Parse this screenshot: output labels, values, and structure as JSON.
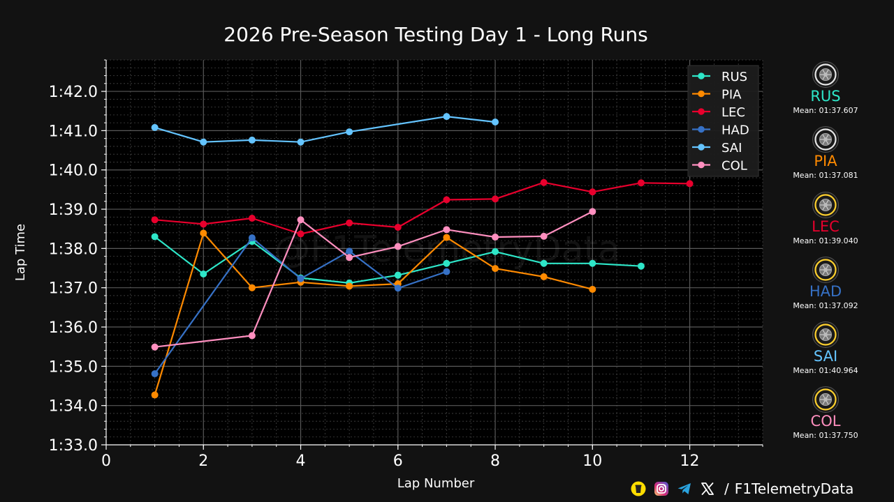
{
  "page": {
    "title": "2026 Pre-Season Testing Day 1 - Long Runs",
    "watermark": "@F1TelemetryData"
  },
  "colors": {
    "background": "#121212",
    "plot_background": "#000000",
    "RUS": "#2ee6c8",
    "PIA": "#ff8a00",
    "LEC": "#e8002d",
    "HAD": "#3671c6",
    "SAI": "#64c4ff",
    "COL": "#ff8fbf"
  },
  "chart_data": {
    "type": "line",
    "title": "2026 Pre-Season Testing Day 1 - Long Runs",
    "xlabel": "Lap Number",
    "ylabel": "Lap Time",
    "xlim": [
      0,
      13.5
    ],
    "ylim": [
      93,
      102.8
    ],
    "x_ticks": [
      0,
      2,
      4,
      6,
      8,
      10,
      12
    ],
    "x_tick_labels": [
      "0",
      "2",
      "4",
      "6",
      "8",
      "10",
      "12"
    ],
    "y_ticks": [
      93,
      94,
      95,
      96,
      97,
      98,
      99,
      100,
      101,
      102
    ],
    "y_tick_labels": [
      "1:33.0",
      "1:34.0",
      "1:35.0",
      "1:36.0",
      "1:37.0",
      "1:38.0",
      "1:39.0",
      "1:40.0",
      "1:41.0",
      "1:42.0"
    ],
    "grid": true,
    "legend_position": "top-right",
    "series": [
      {
        "name": "RUS",
        "x": [
          1,
          2,
          3,
          4,
          5,
          6,
          7,
          8,
          9,
          10,
          11
        ],
        "y": [
          98.3,
          97.35,
          98.18,
          97.25,
          97.12,
          97.32,
          97.62,
          97.92,
          97.62,
          97.62,
          97.55
        ]
      },
      {
        "name": "PIA",
        "x": [
          1,
          2,
          3,
          4,
          5,
          6,
          7,
          8,
          9,
          10
        ],
        "y": [
          94.27,
          98.39,
          97.0,
          97.14,
          97.04,
          97.1,
          98.28,
          97.49,
          97.28,
          96.96
        ]
      },
      {
        "name": "LEC",
        "x": [
          1,
          2,
          3,
          4,
          5,
          6,
          7,
          8,
          9,
          10,
          11,
          12
        ],
        "y": [
          98.73,
          98.62,
          98.77,
          98.37,
          98.65,
          98.54,
          99.24,
          99.26,
          99.68,
          99.44,
          99.67,
          99.65
        ]
      },
      {
        "name": "HAD",
        "x": [
          1,
          3,
          4,
          5,
          6,
          7
        ],
        "y": [
          94.81,
          98.27,
          97.23,
          97.93,
          96.99,
          97.41
        ]
      },
      {
        "name": "SAI",
        "x": [
          1,
          2,
          3,
          4,
          5,
          7,
          8
        ],
        "y": [
          101.08,
          100.71,
          100.76,
          100.71,
          100.97,
          101.36,
          101.22
        ]
      },
      {
        "name": "COL",
        "x": [
          1,
          3,
          4,
          5,
          6,
          7,
          8,
          9,
          10
        ],
        "y": [
          95.49,
          95.78,
          98.73,
          97.77,
          98.05,
          98.48,
          98.29,
          98.31,
          98.94
        ]
      }
    ]
  },
  "drivers": [
    {
      "code": "RUS",
      "mean": "Mean: 01:37.607",
      "compound": "hard"
    },
    {
      "code": "PIA",
      "mean": "Mean: 01:37.081",
      "compound": "hard"
    },
    {
      "code": "LEC",
      "mean": "Mean: 01:39.040",
      "compound": "medium"
    },
    {
      "code": "HAD",
      "mean": "Mean: 01:37.092",
      "compound": "medium"
    },
    {
      "code": "SAI",
      "mean": "Mean: 01:40.964",
      "compound": "medium"
    },
    {
      "code": "COL",
      "mean": "Mean: 01:37.750",
      "compound": "medium"
    }
  ],
  "tyre_colors": {
    "hard": "#e6e6e6",
    "medium": "#ffd12e"
  },
  "footer": {
    "separator": "/",
    "handle": "F1TelemetryData",
    "icons": [
      "buymeacoffee-icon",
      "instagram-icon",
      "telegram-icon",
      "x-icon"
    ]
  }
}
